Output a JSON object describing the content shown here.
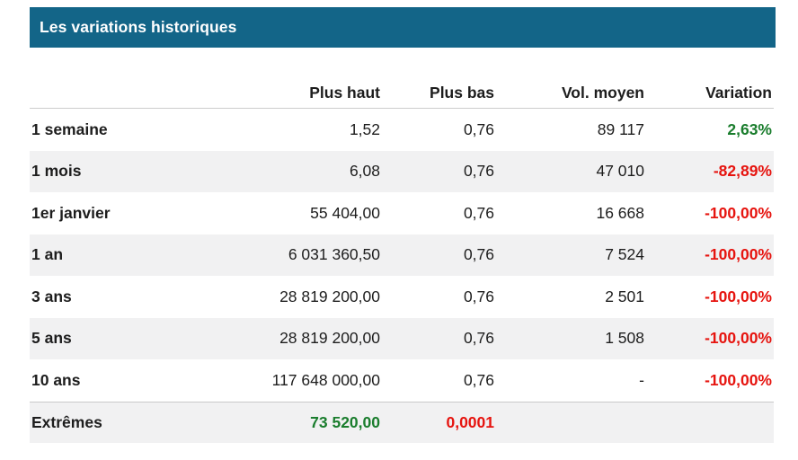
{
  "panel": {
    "title": "Les variations historiques"
  },
  "colors": {
    "accent": "#136588",
    "positive": "#1a7d2d",
    "negative": "#e6140f",
    "stripe": "#f1f1f2",
    "border": "#cccccc",
    "text": "#1d1d1d"
  },
  "table": {
    "columns": [
      "",
      "Plus haut",
      "Plus bas",
      "Vol. moyen",
      "Variation"
    ],
    "rows": [
      {
        "label": "1 semaine",
        "plus_haut": "1,52",
        "plus_bas": "0,76",
        "vol_moyen": "89 117",
        "variation": "2,63%",
        "variation_trend": "positive"
      },
      {
        "label": "1 mois",
        "plus_haut": "6,08",
        "plus_bas": "0,76",
        "vol_moyen": "47 010",
        "variation": "-82,89%",
        "variation_trend": "negative"
      },
      {
        "label": "1er janvier",
        "plus_haut": "55 404,00",
        "plus_bas": "0,76",
        "vol_moyen": "16 668",
        "variation": "-100,00%",
        "variation_trend": "negative"
      },
      {
        "label": "1 an",
        "plus_haut": "6 031 360,50",
        "plus_bas": "0,76",
        "vol_moyen": "7 524",
        "variation": "-100,00%",
        "variation_trend": "negative"
      },
      {
        "label": "3 ans",
        "plus_haut": "28 819 200,00",
        "plus_bas": "0,76",
        "vol_moyen": "2 501",
        "variation": "-100,00%",
        "variation_trend": "negative"
      },
      {
        "label": "5 ans",
        "plus_haut": "28 819 200,00",
        "plus_bas": "0,76",
        "vol_moyen": "1 508",
        "variation": "-100,00%",
        "variation_trend": "negative"
      },
      {
        "label": "10 ans",
        "plus_haut": "117 648 000,00",
        "plus_bas": "0,76",
        "vol_moyen": "-",
        "variation": "-100,00%",
        "variation_trend": "negative"
      }
    ],
    "footer": {
      "label": "Extrêmes",
      "plus_haut": "73 520,00",
      "plus_haut_trend": "positive",
      "plus_bas": "0,0001",
      "plus_bas_trend": "negative"
    }
  }
}
